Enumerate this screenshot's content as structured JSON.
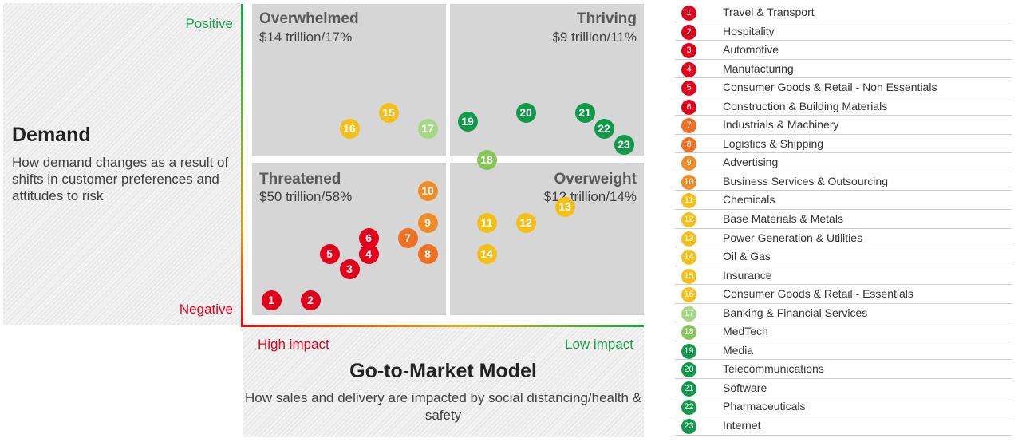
{
  "demand": {
    "title": "Demand",
    "description": "How demand changes as a result of shifts in customer preferences and attitudes to risk",
    "positive_label": "Positive",
    "negative_label": "Negative"
  },
  "gtm": {
    "title": "Go-to-Market Model",
    "description": "How sales and delivery are impacted by social distancing/health & safety",
    "high_label": "High impact",
    "low_label": "Low impact"
  },
  "quadrants": {
    "overwhelmed": {
      "title": "Overwhelmed",
      "value": "$14 trillion/17%"
    },
    "thriving": {
      "title": "Thriving",
      "value": "$9 trillion/11%"
    },
    "threatened": {
      "title": "Threatened",
      "value": "$50 trillion/58%"
    },
    "overweight": {
      "title": "Overweight",
      "value": "$12 trillion/14%"
    }
  },
  "colors": {
    "red": "#e2001a",
    "orange": "#f0882a",
    "yellow": "#f5bf1a",
    "light_green": "#9fd37a",
    "mid_green": "#86c55a",
    "dark_green": "#0f9a4a"
  },
  "legend": [
    {
      "num": "1",
      "label": "Travel & Transport",
      "color": "#e2001a"
    },
    {
      "num": "2",
      "label": "Hospitality",
      "color": "#e2001a"
    },
    {
      "num": "3",
      "label": "Automotive",
      "color": "#e2001a"
    },
    {
      "num": "4",
      "label": "Manufacturing",
      "color": "#e2001a"
    },
    {
      "num": "5",
      "label": "Consumer Goods  & Retail - Non Essentials",
      "color": "#e2001a"
    },
    {
      "num": "6",
      "label": "Construction & Building Materials",
      "color": "#e2001a"
    },
    {
      "num": "7",
      "label": "Industrials & Machinery",
      "color": "#ee7023"
    },
    {
      "num": "8",
      "label": "Logistics & Shipping",
      "color": "#ee7023"
    },
    {
      "num": "9",
      "label": "Advertising",
      "color": "#f08c28"
    },
    {
      "num": "10",
      "label": "Business Services & Outsourcing",
      "color": "#f08c28"
    },
    {
      "num": "11",
      "label": "Chemicals",
      "color": "#f5bf1a"
    },
    {
      "num": "12",
      "label": "Base Materials & Metals",
      "color": "#f5bf1a"
    },
    {
      "num": "13",
      "label": "Power Generation & Utilities",
      "color": "#f5bf1a"
    },
    {
      "num": "14",
      "label": "Oil & Gas",
      "color": "#f5bf1a"
    },
    {
      "num": "15",
      "label": "Insurance",
      "color": "#f5bf1a"
    },
    {
      "num": "16",
      "label": "Consumer Goods  & Retail - Essentials",
      "color": "#f5bf1a"
    },
    {
      "num": "17",
      "label": "Banking & Financial Services",
      "color": "#a6d785"
    },
    {
      "num": "18",
      "label": "MedTech",
      "color": "#86c55a"
    },
    {
      "num": "19",
      "label": "Media",
      "color": "#0f9a4a"
    },
    {
      "num": "20",
      "label": "Telecommunications",
      "color": "#0f9a4a"
    },
    {
      "num": "21",
      "label": "Software",
      "color": "#0f9a4a"
    },
    {
      "num": "22",
      "label": "Pharmaceuticals",
      "color": "#0f9a4a"
    },
    {
      "num": "23",
      "label": "Internet",
      "color": "#0f9a4a"
    }
  ]
}
